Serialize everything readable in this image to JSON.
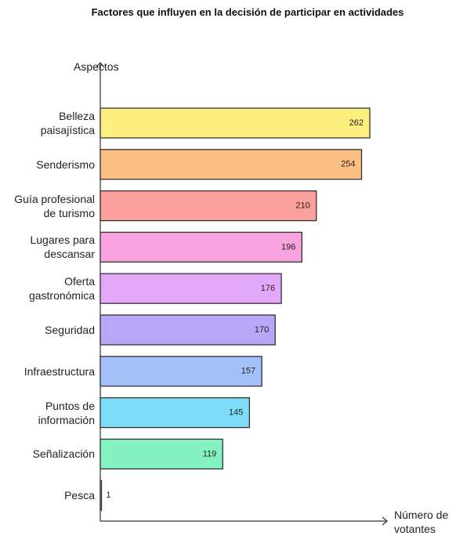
{
  "chart_data": {
    "type": "barh",
    "title": "Factores que influyen en la decisión de participar en actividades",
    "y_label": "Aspectos",
    "x_label": "Número de votantes",
    "categories": [
      "Belleza paisajística",
      "Senderismo",
      "Guía profesional de turismo",
      "Lugares para descansar",
      "Oferta gastronómica",
      "Seguridad",
      "Infraestructura",
      "Puntos de información",
      "Señalización",
      "Pesca"
    ],
    "values": [
      262,
      254,
      210,
      196,
      176,
      170,
      157,
      145,
      119,
      1
    ],
    "colors": [
      "#fcef7e",
      "#fcbf82",
      "#fa9f9c",
      "#f9a2e0",
      "#e2a9f8",
      "#b8a6f7",
      "#a4c0f8",
      "#7fdcf9",
      "#84f1c2",
      "#d0d0d0"
    ]
  }
}
